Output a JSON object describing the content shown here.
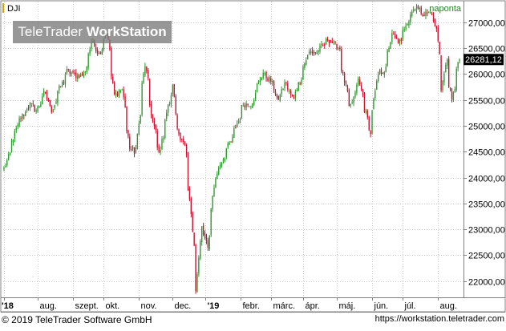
{
  "chart_data": {
    "type": "candlestick",
    "symbol": "DJI",
    "period_label": "naponta",
    "last_value_label": "26281,12",
    "ylim": [
      21700,
      27400
    ],
    "yticks": [
      22000,
      22500,
      23000,
      23500,
      24000,
      24500,
      25000,
      25500,
      26000,
      26500,
      27000
    ],
    "ytick_labels": [
      "22000,00",
      "22500,00",
      "23000,00",
      "23500,00",
      "24000,00",
      "24500,00",
      "25000,00",
      "25500,00",
      "26000,00",
      "26500,00",
      "27000,00"
    ],
    "xlabels": [
      "'18",
      "aug.",
      "szept.",
      "okt.",
      "nov.",
      "dec.",
      "'19",
      "febr.",
      "márc.",
      "ápr.",
      "máj.",
      "jún.",
      "júl.",
      "aug."
    ],
    "grid": true,
    "up_color": "#2a9a2a",
    "down_color": "#c8102e",
    "close_path": [
      [
        "2018-07-02",
        24175
      ],
      [
        "2018-07-06",
        24460
      ],
      [
        "2018-07-12",
        24930
      ],
      [
        "2018-07-18",
        25200
      ],
      [
        "2018-07-25",
        25410
      ],
      [
        "2018-07-31",
        25300
      ],
      [
        "2018-08-07",
        25630
      ],
      [
        "2018-08-14",
        25300
      ],
      [
        "2018-08-20",
        25670
      ],
      [
        "2018-08-28",
        26050
      ],
      [
        "2018-09-05",
        25970
      ],
      [
        "2018-09-12",
        25990
      ],
      [
        "2018-09-20",
        26650
      ],
      [
        "2018-09-26",
        26380
      ],
      [
        "2018-10-03",
        26820
      ],
      [
        "2018-10-10",
        25600
      ],
      [
        "2018-10-17",
        25700
      ],
      [
        "2018-10-24",
        24580
      ],
      [
        "2018-10-29",
        24440
      ],
      [
        "2018-11-07",
        26180
      ],
      [
        "2018-11-14",
        25080
      ],
      [
        "2018-11-20",
        24470
      ],
      [
        "2018-11-28",
        25370
      ],
      [
        "2018-12-03",
        25820
      ],
      [
        "2018-12-06",
        24950
      ],
      [
        "2018-12-13",
        24600
      ],
      [
        "2018-12-19",
        23320
      ],
      [
        "2018-12-24",
        21800
      ],
      [
        "2018-12-28",
        23060
      ],
      [
        "2019-01-03",
        22690
      ],
      [
        "2019-01-10",
        24000
      ],
      [
        "2019-01-17",
        24370
      ],
      [
        "2019-01-25",
        24740
      ],
      [
        "2019-02-05",
        25410
      ],
      [
        "2019-02-12",
        25420
      ],
      [
        "2019-02-22",
        26030
      ],
      [
        "2019-03-04",
        25810
      ],
      [
        "2019-03-08",
        25450
      ],
      [
        "2019-03-15",
        25850
      ],
      [
        "2019-03-22",
        25500
      ],
      [
        "2019-03-29",
        25930
      ],
      [
        "2019-04-05",
        26420
      ],
      [
        "2019-04-12",
        26410
      ],
      [
        "2019-04-23",
        26660
      ],
      [
        "2019-05-03",
        26500
      ],
      [
        "2019-05-07",
        25970
      ],
      [
        "2019-05-13",
        25320
      ],
      [
        "2019-05-21",
        25880
      ],
      [
        "2019-05-29",
        25130
      ],
      [
        "2019-05-31",
        24820
      ],
      [
        "2019-06-07",
        25980
      ],
      [
        "2019-06-14",
        26090
      ],
      [
        "2019-06-20",
        26750
      ],
      [
        "2019-06-28",
        26600
      ],
      [
        "2019-07-03",
        26970
      ],
      [
        "2019-07-12",
        27330
      ],
      [
        "2019-07-19",
        27150
      ],
      [
        "2019-07-26",
        27190
      ],
      [
        "2019-07-31",
        26860
      ],
      [
        "2019-08-05",
        25720
      ],
      [
        "2019-08-09",
        26290
      ],
      [
        "2019-08-14",
        25480
      ],
      [
        "2019-08-19",
        26140
      ],
      [
        "2019-08-21",
        26281
      ]
    ]
  },
  "footer": {
    "copyright": "© 2019 TeleTrader Software GmbH",
    "url": "https://workstation.teletrader.com"
  },
  "watermark": {
    "brand": "TeleTrader",
    "product": "WorkStation"
  }
}
